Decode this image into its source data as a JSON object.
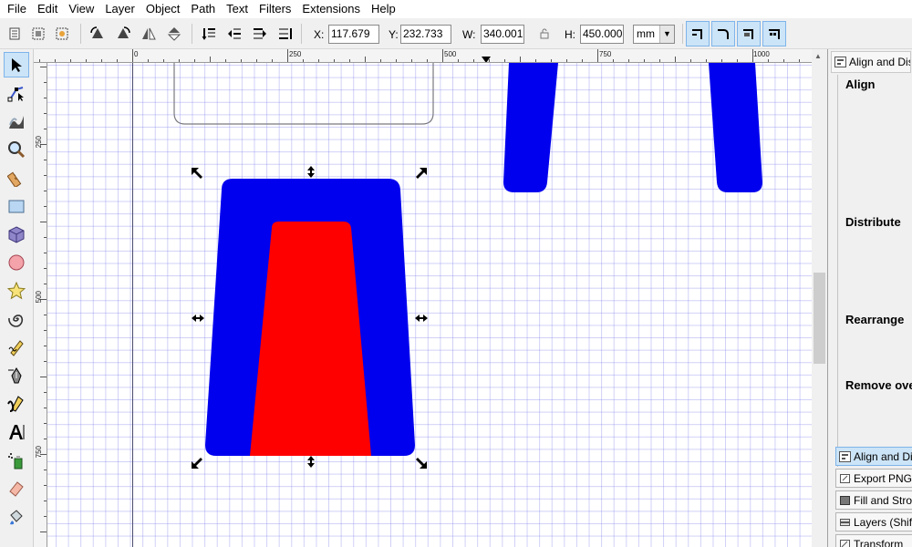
{
  "menu": [
    "File",
    "Edit",
    "View",
    "Layer",
    "Object",
    "Path",
    "Text",
    "Filters",
    "Extensions",
    "Help"
  ],
  "toolbar": {
    "x_label": "X:",
    "x_value": "117.679",
    "y_label": "Y:",
    "y_value": "232.733",
    "w_label": "W:",
    "w_value": "340.001",
    "h_label": "H:",
    "h_value": "450.000",
    "unit": "mm"
  },
  "ruler": {
    "top_labels": [
      "0",
      "250",
      "500",
      "750",
      "1000"
    ],
    "left_labels": [
      "250",
      "500",
      "750"
    ]
  },
  "dock": {
    "title": "Align and Distribute",
    "sections": [
      "Align",
      "Distribute",
      "Rearrange",
      "Remove overlaps"
    ],
    "tabs": [
      "Align and Distribute",
      "Export PNG Image",
      "Fill and Stroke",
      "Layers (Shift+Ctrl+L)",
      "Transform"
    ]
  },
  "colors": {
    "blue_shape": "#0000ee",
    "red_shape": "#ff0000",
    "selection_active": "#cce4f7"
  }
}
